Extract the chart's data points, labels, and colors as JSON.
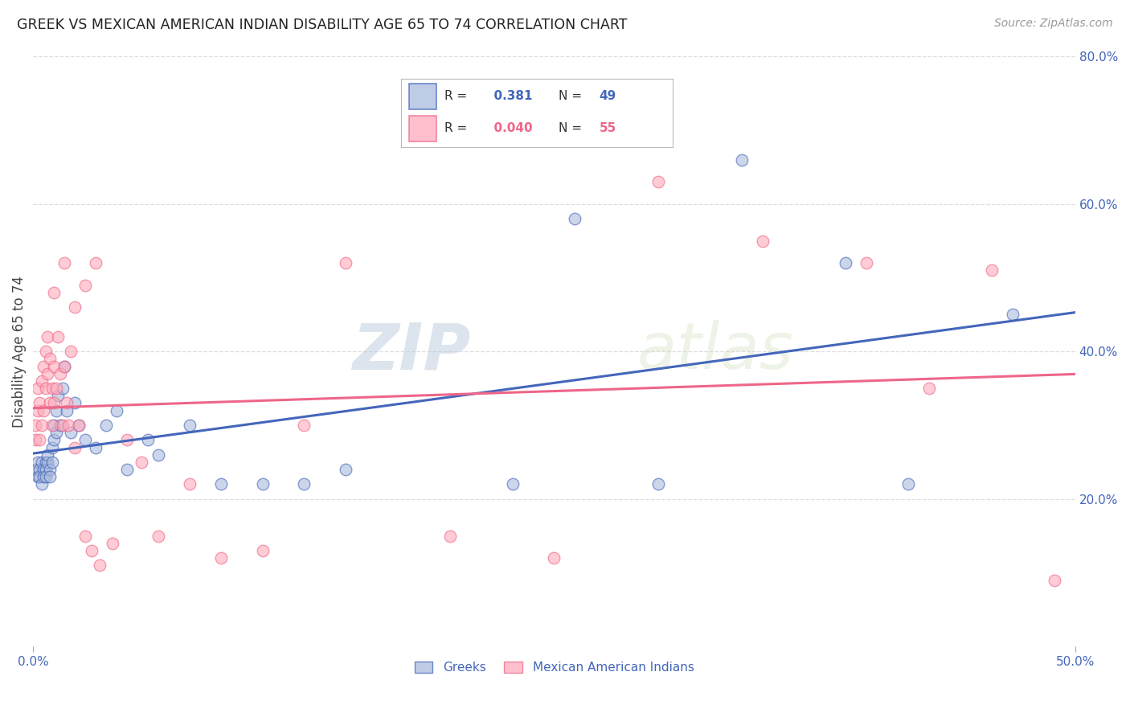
{
  "title": "GREEK VS MEXICAN AMERICAN INDIAN DISABILITY AGE 65 TO 74 CORRELATION CHART",
  "source": "Source: ZipAtlas.com",
  "ylabel": "Disability Age 65 to 74",
  "right_yticks": [
    0.0,
    0.2,
    0.4,
    0.6,
    0.8
  ],
  "right_yticklabels": [
    "",
    "20.0%",
    "40.0%",
    "60.0%",
    "80.0%"
  ],
  "xlim": [
    0.0,
    0.5
  ],
  "ylim": [
    0.0,
    0.8
  ],
  "greek_R": 0.381,
  "greek_N": 49,
  "mexican_R": 0.04,
  "mexican_N": 55,
  "greek_color": "#aabbdd",
  "mexican_color": "#ffaabb",
  "greek_line_color": "#4466bb",
  "mexican_line_color": "#ee6688",
  "watermark_zip": "ZIP",
  "watermark_atlas": "atlas",
  "legend_label_greek": "Greeks",
  "legend_label_mexican": "Mexican American Indians",
  "greek_points_x": [
    0.001,
    0.002,
    0.002,
    0.003,
    0.003,
    0.004,
    0.004,
    0.005,
    0.005,
    0.006,
    0.006,
    0.006,
    0.007,
    0.007,
    0.008,
    0.008,
    0.009,
    0.009,
    0.01,
    0.01,
    0.011,
    0.011,
    0.012,
    0.013,
    0.014,
    0.015,
    0.016,
    0.018,
    0.02,
    0.022,
    0.025,
    0.03,
    0.035,
    0.04,
    0.045,
    0.055,
    0.06,
    0.075,
    0.09,
    0.11,
    0.13,
    0.15,
    0.23,
    0.26,
    0.3,
    0.34,
    0.39,
    0.42,
    0.47
  ],
  "greek_points_y": [
    0.24,
    0.23,
    0.25,
    0.24,
    0.23,
    0.22,
    0.25,
    0.24,
    0.23,
    0.25,
    0.24,
    0.23,
    0.25,
    0.26,
    0.24,
    0.23,
    0.27,
    0.25,
    0.3,
    0.28,
    0.32,
    0.29,
    0.34,
    0.3,
    0.35,
    0.38,
    0.32,
    0.29,
    0.33,
    0.3,
    0.28,
    0.27,
    0.3,
    0.32,
    0.24,
    0.28,
    0.26,
    0.3,
    0.22,
    0.22,
    0.22,
    0.24,
    0.22,
    0.58,
    0.22,
    0.66,
    0.52,
    0.22,
    0.45
  ],
  "mexican_points_x": [
    0.001,
    0.001,
    0.002,
    0.002,
    0.003,
    0.003,
    0.004,
    0.004,
    0.005,
    0.005,
    0.006,
    0.006,
    0.007,
    0.007,
    0.008,
    0.008,
    0.009,
    0.009,
    0.01,
    0.01,
    0.011,
    0.012,
    0.013,
    0.014,
    0.015,
    0.016,
    0.017,
    0.018,
    0.02,
    0.022,
    0.025,
    0.028,
    0.032,
    0.038,
    0.045,
    0.052,
    0.06,
    0.075,
    0.09,
    0.11,
    0.13,
    0.15,
    0.2,
    0.25,
    0.3,
    0.35,
    0.4,
    0.43,
    0.46,
    0.49,
    0.01,
    0.015,
    0.02,
    0.025,
    0.03
  ],
  "mexican_points_y": [
    0.3,
    0.28,
    0.32,
    0.35,
    0.28,
    0.33,
    0.36,
    0.3,
    0.38,
    0.32,
    0.4,
    0.35,
    0.37,
    0.42,
    0.33,
    0.39,
    0.35,
    0.3,
    0.38,
    0.33,
    0.35,
    0.42,
    0.37,
    0.3,
    0.38,
    0.33,
    0.3,
    0.4,
    0.27,
    0.3,
    0.15,
    0.13,
    0.11,
    0.14,
    0.28,
    0.25,
    0.15,
    0.22,
    0.12,
    0.13,
    0.3,
    0.52,
    0.15,
    0.12,
    0.63,
    0.55,
    0.52,
    0.35,
    0.51,
    0.09,
    0.48,
    0.52,
    0.46,
    0.49,
    0.52
  ]
}
